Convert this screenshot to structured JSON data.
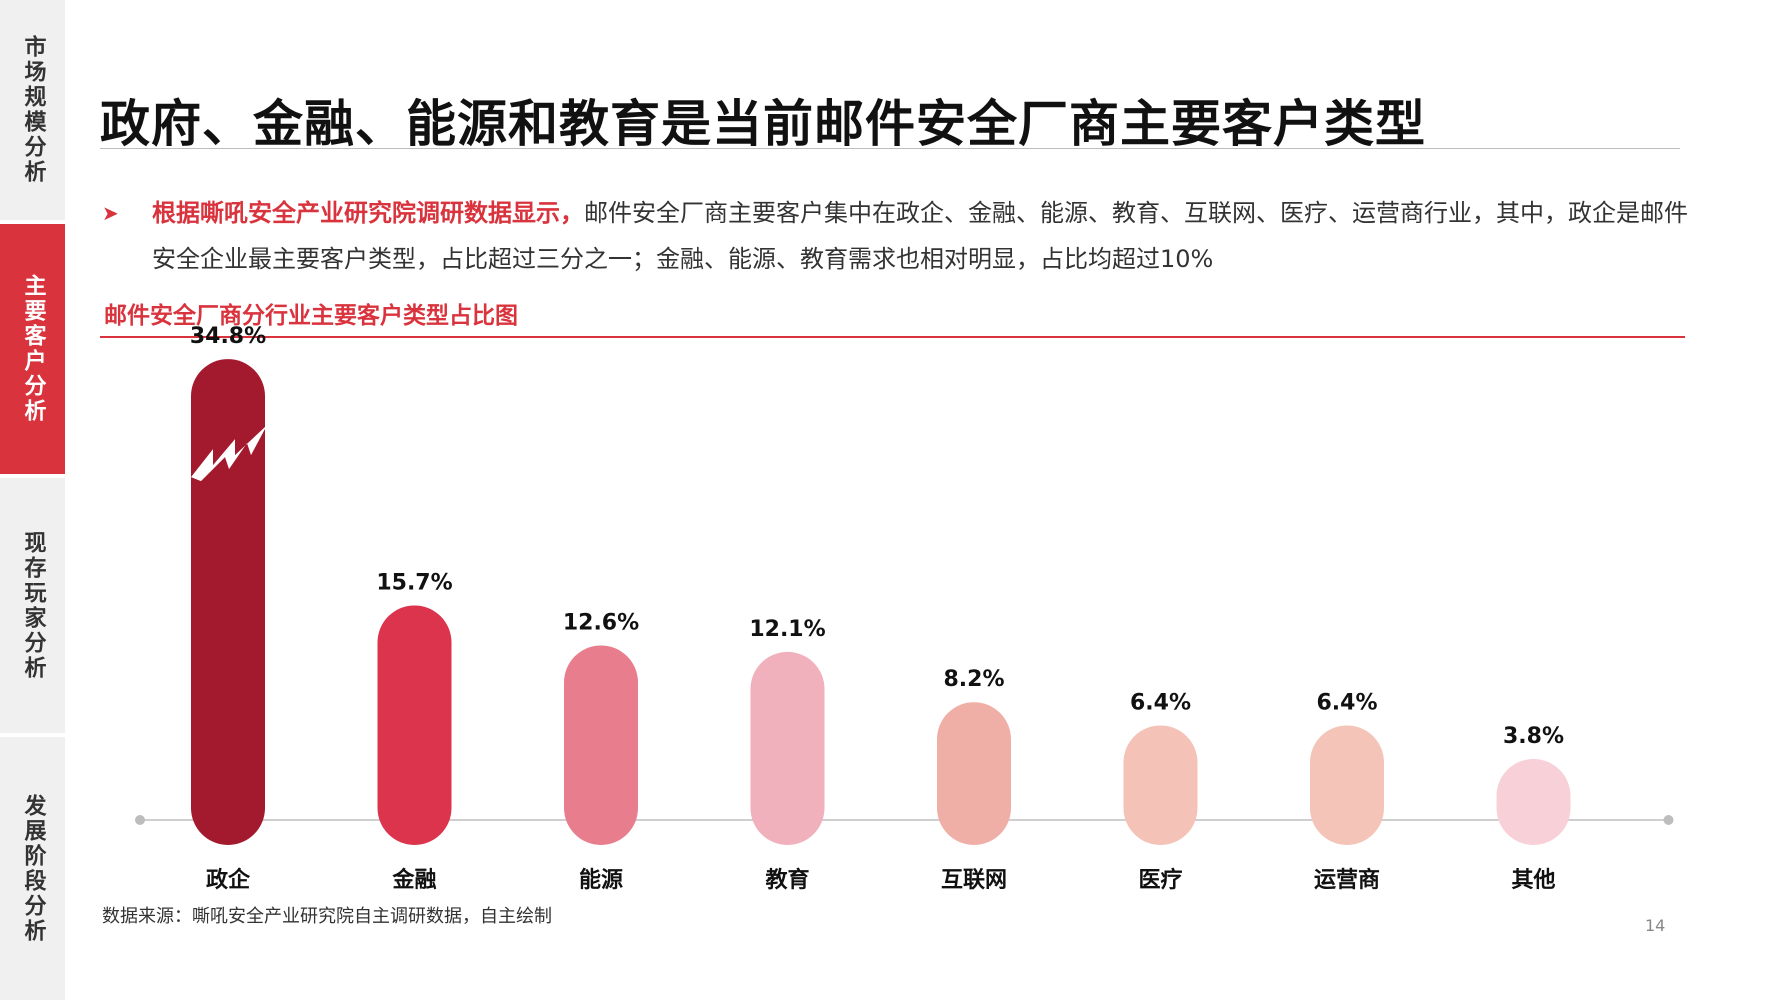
{
  "sidebar": {
    "items": [
      {
        "label": "市场规模分析",
        "active": false
      },
      {
        "label": "主要客户分析",
        "active": true
      },
      {
        "label": "现存玩家分析",
        "active": false
      },
      {
        "label": "发展阶段分析",
        "active": false
      }
    ]
  },
  "title": "政府、金融、能源和教育是当前邮件安全厂商主要客户类型",
  "bullet": {
    "highlight": "根据嘶吼安全产业研究院调研数据显示，",
    "text": "邮件安全厂商主要客户集中在政企、金融、能源、教育、互联网、医疗、运营商行业，其中，政企是邮件安全企业最主要客户类型，占比超过三分之一；金融、能源、教育需求也相对明显，占比均超过10%"
  },
  "source": "数据来源：嘶吼安全产业研究院自主调研数据，自主绘制",
  "page_number": "14",
  "colors": {
    "accent": "#d9343e",
    "bars": [
      "#a3192e",
      "#dd344d",
      "#e87d8e",
      "#f1b1bc",
      "#f0afa6",
      "#f4c2b7",
      "#f4c4b9",
      "#f8d0d7"
    ]
  },
  "chart_data": {
    "type": "bar",
    "title": "邮件安全厂商分行业主要客户类型占比图",
    "categories": [
      "政企",
      "金融",
      "能源",
      "教育",
      "互联网",
      "医疗",
      "运营商",
      "其他"
    ],
    "values": [
      34.8,
      15.7,
      12.6,
      12.1,
      8.2,
      6.4,
      6.4,
      3.8
    ],
    "value_labels": [
      "34.8%",
      "15.7%",
      "12.6%",
      "12.1%",
      "8.2%",
      "6.4%",
      "6.4%",
      "3.8%"
    ],
    "unit": "%",
    "grid": false,
    "legend": "none"
  }
}
